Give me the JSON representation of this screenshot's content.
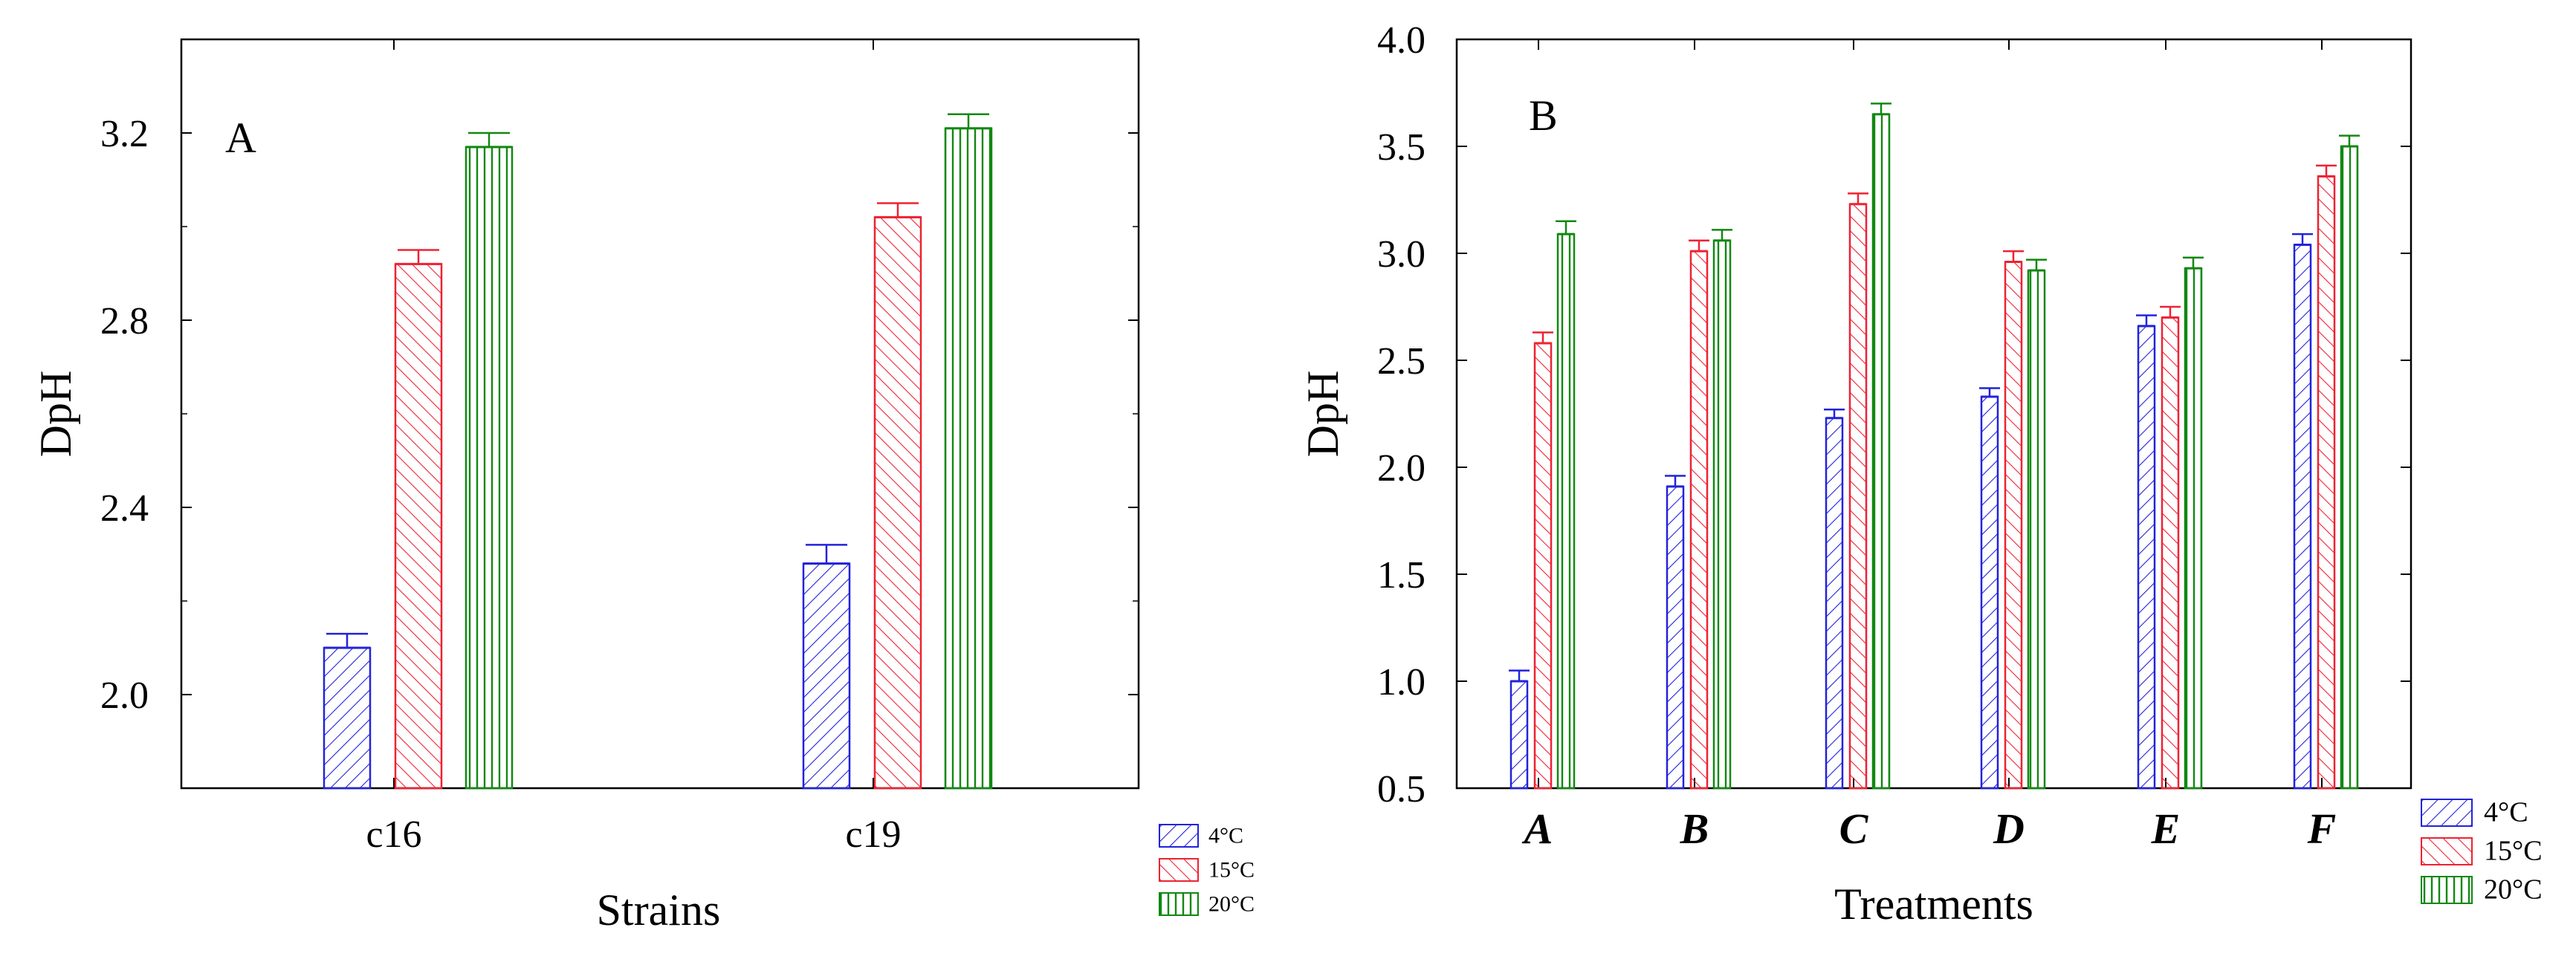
{
  "colors": {
    "4C": "#2222dd",
    "15C": "#ee2233",
    "20C": "#118811"
  },
  "chart_data": [
    {
      "panel": "A",
      "type": "bar",
      "xlabel": "Strains",
      "ylabel": "DpH",
      "ylim": [
        1.8,
        3.4
      ],
      "yticks": [
        2.0,
        2.4,
        2.8,
        3.2
      ],
      "ytick_labels": [
        "2.0",
        "2.4",
        "2.8",
        "3.2"
      ],
      "categories": [
        "c16",
        "c19"
      ],
      "category_style": "normal",
      "legend_position": "bottom-right outside",
      "series": [
        {
          "name": "4°C",
          "key": "4C",
          "pattern": "diag-up",
          "values": [
            2.1,
            2.28
          ],
          "errors": [
            0.03,
            0.04
          ]
        },
        {
          "name": "15°C",
          "key": "15C",
          "pattern": "diag-down",
          "values": [
            2.92,
            3.02
          ],
          "errors": [
            0.03,
            0.03
          ]
        },
        {
          "name": "20°C",
          "key": "20C",
          "pattern": "vertical",
          "values": [
            3.17,
            3.21
          ],
          "errors": [
            0.03,
            0.03
          ]
        }
      ]
    },
    {
      "panel": "B",
      "type": "bar",
      "xlabel": "Treatments",
      "ylabel": "DpH",
      "ylim": [
        0.5,
        4.0
      ],
      "yticks": [
        0.5,
        1.0,
        1.5,
        2.0,
        2.5,
        3.0,
        3.5,
        4.0
      ],
      "ytick_labels": [
        "0.5",
        "1.0",
        "1.5",
        "2.0",
        "2.5",
        "3.0",
        "3.5",
        "4.0"
      ],
      "categories": [
        "A",
        "B",
        "C",
        "D",
        "E",
        "F"
      ],
      "category_style": "bold-italic",
      "legend_position": "bottom-right outside",
      "series": [
        {
          "name": "4°C",
          "key": "4C",
          "pattern": "diag-up",
          "values": [
            1.0,
            1.91,
            2.23,
            2.33,
            2.66,
            3.04
          ],
          "errors": [
            0.05,
            0.05,
            0.04,
            0.04,
            0.05,
            0.05
          ]
        },
        {
          "name": "15°C",
          "key": "15C",
          "pattern": "diag-down",
          "values": [
            2.58,
            3.01,
            3.23,
            2.96,
            2.7,
            3.36
          ],
          "errors": [
            0.05,
            0.05,
            0.05,
            0.05,
            0.05,
            0.05
          ]
        },
        {
          "name": "20°C",
          "key": "20C",
          "pattern": "vertical",
          "values": [
            3.09,
            3.06,
            3.65,
            2.92,
            2.93,
            3.5
          ],
          "errors": [
            0.06,
            0.05,
            0.05,
            0.05,
            0.05,
            0.05
          ]
        }
      ]
    }
  ]
}
